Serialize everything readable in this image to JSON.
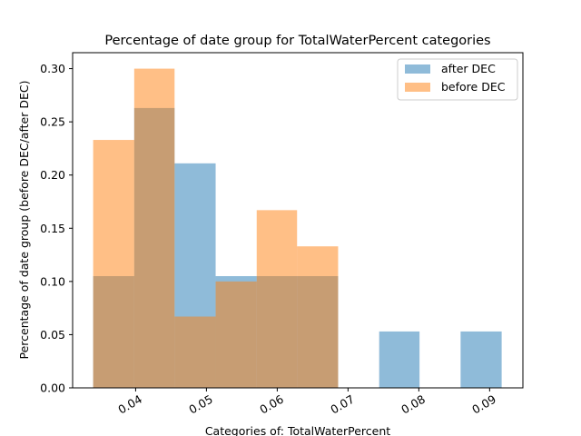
{
  "chart_data": {
    "type": "bar",
    "title": "Percentage of date group for TotalWaterPercent categories",
    "xlabel": "Categories of: TotalWaterPercent",
    "ylabel": "Percentage of date group (before DEC/after DEC)",
    "xlim": [
      0.0311,
      0.0947
    ],
    "ylim": [
      0,
      0.315
    ],
    "x_ticks": [
      0.04,
      0.05,
      0.06,
      0.07,
      0.08,
      0.09
    ],
    "x_tick_labels": [
      "0.04",
      "0.05",
      "0.06",
      "0.07",
      "0.08",
      "0.09"
    ],
    "y_ticks": [
      0,
      0.05,
      0.1,
      0.15,
      0.2,
      0.25,
      0.3
    ],
    "y_tick_labels": [
      "0.00",
      "0.05",
      "0.10",
      "0.15",
      "0.20",
      "0.25",
      "0.30"
    ],
    "bin_edges": [
      0.034,
      0.0398,
      0.0455,
      0.0513,
      0.0571,
      0.0628,
      0.0686,
      0.0744,
      0.0801,
      0.0859,
      0.0917
    ],
    "series": [
      {
        "name": "after DEC",
        "color": "#1f77b4",
        "alpha": 0.5,
        "values": [
          0.105,
          0.263,
          0.211,
          0.105,
          0.105,
          0.105,
          0,
          0.053,
          0,
          0.053
        ]
      },
      {
        "name": "before DEC",
        "color": "#ff7f0e",
        "alpha": 0.5,
        "values": [
          0.233,
          0.3,
          0.067,
          0.1,
          0.167,
          0.133,
          0,
          0,
          0,
          0
        ]
      }
    ],
    "legend_position": "top-right",
    "grid": false
  }
}
